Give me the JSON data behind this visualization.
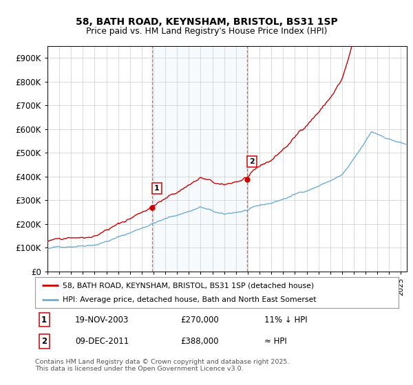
{
  "title_line1": "58, BATH ROAD, KEYNSHAM, BRISTOL, BS31 1SP",
  "title_line2": "Price paid vs. HM Land Registry's House Price Index (HPI)",
  "ylabel_ticks": [
    "£0",
    "£100K",
    "£200K",
    "£300K",
    "£400K",
    "£500K",
    "£600K",
    "£700K",
    "£800K",
    "£900K"
  ],
  "ytick_values": [
    0,
    100000,
    200000,
    300000,
    400000,
    500000,
    600000,
    700000,
    800000,
    900000
  ],
  "ylim": [
    0,
    950000
  ],
  "xlim_start": 1995.0,
  "xlim_end": 2025.5,
  "hpi_color": "#6baed6",
  "price_color": "#cc0000",
  "sale1_x": 2003.89,
  "sale1_y": 270000,
  "sale1_date": "19-NOV-2003",
  "sale1_price": 270000,
  "sale1_label": "11% ↓ HPI",
  "sale2_x": 2011.94,
  "sale2_y": 388000,
  "sale2_date": "09-DEC-2011",
  "sale2_price": 388000,
  "sale2_label": "≈ HPI",
  "legend_house_label": "58, BATH ROAD, KEYNSHAM, BRISTOL, BS31 1SP (detached house)",
  "legend_hpi_label": "HPI: Average price, detached house, Bath and North East Somerset",
  "footnote": "Contains HM Land Registry data © Crown copyright and database right 2025.\nThis data is licensed under the Open Government Licence v3.0.",
  "shade_start": 2003.89,
  "shade_end": 2011.94,
  "background_color": "#ffffff",
  "plot_bg_color": "#ffffff",
  "grid_color": "#cccccc"
}
